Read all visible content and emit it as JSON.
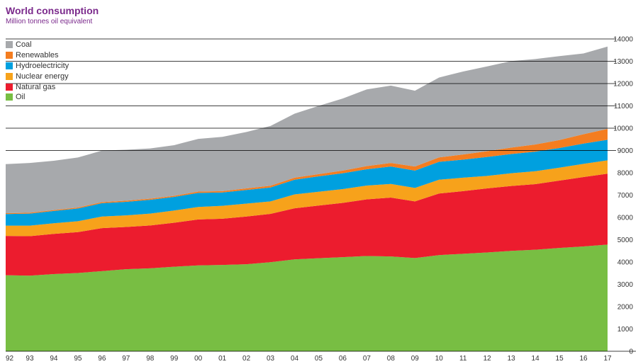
{
  "chart_data": {
    "type": "area",
    "stacked": true,
    "title": "World consumption",
    "subtitle": "Million tonnes oil equivalent",
    "xlabel": "",
    "ylabel": "",
    "x": [
      "92",
      "93",
      "94",
      "95",
      "96",
      "97",
      "98",
      "99",
      "00",
      "01",
      "02",
      "03",
      "04",
      "05",
      "06",
      "07",
      "08",
      "09",
      "10",
      "11",
      "12",
      "13",
      "14",
      "15",
      "16",
      "17"
    ],
    "ylim": [
      0,
      14000
    ],
    "yticks": [
      0,
      1000,
      2000,
      3000,
      4000,
      5000,
      6000,
      7000,
      8000,
      9000,
      10000,
      11000,
      12000,
      13000,
      14000
    ],
    "y_axis_side": "right",
    "grid": "horizontal lines above the areas",
    "legend_position": "top-left",
    "series": [
      {
        "name": "Oil",
        "color": "#78be43",
        "values": [
          3410,
          3390,
          3460,
          3510,
          3590,
          3680,
          3720,
          3790,
          3850,
          3870,
          3900,
          3990,
          4120,
          4170,
          4220,
          4270,
          4250,
          4180,
          4310,
          4370,
          4430,
          4500,
          4550,
          4630,
          4700,
          4780
        ]
      },
      {
        "name": "Natural gas",
        "color": "#ec1c2e",
        "values": [
          1760,
          1770,
          1800,
          1830,
          1930,
          1890,
          1920,
          1970,
          2060,
          2070,
          2140,
          2170,
          2290,
          2360,
          2430,
          2540,
          2640,
          2540,
          2760,
          2810,
          2870,
          2910,
          2940,
          3020,
          3110,
          3180
        ]
      },
      {
        "name": "Nuclear energy",
        "color": "#f7a21b",
        "values": [
          460,
          470,
          480,
          490,
          520,
          520,
          530,
          550,
          560,
          580,
          580,
          560,
          620,
          620,
          620,
          620,
          610,
          600,
          620,
          600,
          560,
          570,
          580,
          580,
          590,
          600
        ]
      },
      {
        "name": "Hydroelectricity",
        "color": "#00a0df",
        "values": [
          520,
          540,
          550,
          570,
          600,
          610,
          620,
          610,
          630,
          600,
          610,
          620,
          660,
          690,
          710,
          730,
          780,
          780,
          800,
          810,
          850,
          860,
          880,
          880,
          910,
          920
        ]
      },
      {
        "name": "Renewables",
        "color": "#f47d20",
        "values": [
          40,
          40,
          40,
          45,
          45,
          50,
          50,
          50,
          60,
          60,
          70,
          80,
          90,
          100,
          120,
          140,
          160,
          180,
          200,
          230,
          260,
          290,
          320,
          360,
          420,
          490
        ]
      },
      {
        "name": "Coal",
        "color": "#a7a9ac",
        "values": [
          2200,
          2230,
          2210,
          2240,
          2310,
          2280,
          2250,
          2270,
          2360,
          2430,
          2530,
          2680,
          2870,
          3060,
          3230,
          3440,
          3470,
          3400,
          3580,
          3720,
          3800,
          3880,
          3830,
          3760,
          3620,
          3690
        ]
      }
    ]
  }
}
